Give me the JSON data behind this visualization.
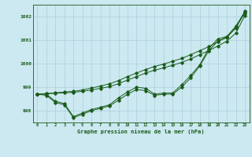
{
  "title": "Graphe pression niveau de la mer (hPa)",
  "background_color": "#cce8f0",
  "grid_color": "#aacfdc",
  "line_color": "#1a5c1a",
  "x_ticks": [
    0,
    1,
    2,
    3,
    4,
    5,
    6,
    7,
    8,
    9,
    10,
    11,
    12,
    13,
    14,
    15,
    16,
    17,
    18,
    19,
    20,
    21,
    22,
    23
  ],
  "ylim": [
    997.5,
    1002.5
  ],
  "yticks": [
    998,
    999,
    1000,
    1001,
    1002
  ],
  "series_wavy1": [
    998.7,
    998.7,
    998.4,
    998.3,
    997.75,
    997.9,
    998.05,
    998.15,
    998.25,
    998.55,
    998.8,
    999.0,
    998.95,
    998.7,
    998.75,
    998.75,
    999.1,
    999.5,
    999.95,
    1000.65,
    1001.05,
    1001.15,
    1001.6,
    1002.2
  ],
  "series_wavy2": [
    998.7,
    998.65,
    998.35,
    998.25,
    997.7,
    997.85,
    998.0,
    998.1,
    998.2,
    998.45,
    998.7,
    998.9,
    998.85,
    998.65,
    998.7,
    998.7,
    999.0,
    999.4,
    999.9,
    1000.55,
    1000.95,
    1001.1,
    1001.55,
    1002.15
  ],
  "series_linear1": [
    998.7,
    998.72,
    998.74,
    998.76,
    998.78,
    998.82,
    998.88,
    998.95,
    999.02,
    999.15,
    999.3,
    999.45,
    999.6,
    999.72,
    999.82,
    999.93,
    1000.05,
    1000.2,
    1000.38,
    1000.55,
    1000.75,
    1000.95,
    1001.3,
    1002.05
  ],
  "series_linear2": [
    998.7,
    998.73,
    998.76,
    998.79,
    998.82,
    998.88,
    998.96,
    999.05,
    999.14,
    999.28,
    999.45,
    999.6,
    999.75,
    999.88,
    999.98,
    1000.1,
    1000.22,
    1000.38,
    1000.55,
    1000.72,
    1000.93,
    1001.15,
    1001.5,
    1002.25
  ]
}
